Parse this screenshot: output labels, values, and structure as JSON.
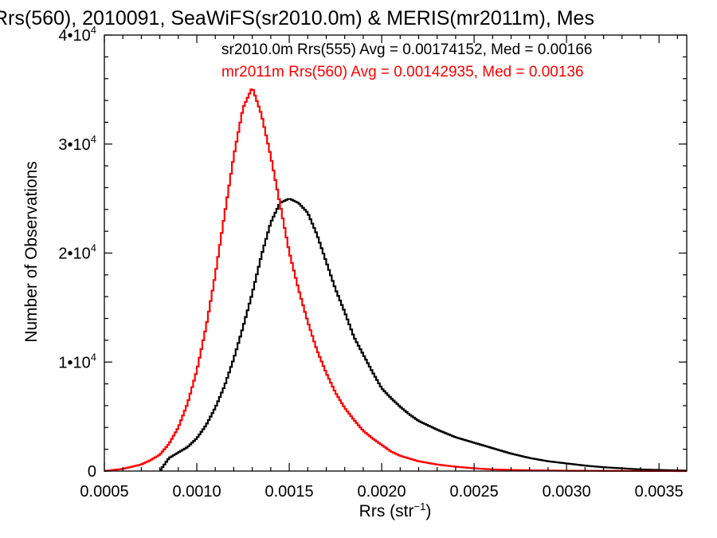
{
  "chart_data": {
    "type": "line",
    "title": "Rrs(560), 2010091, SeaWiFS(sr2010.0m) & MERIS(mr2011m), Mes",
    "xlabel": "Rrs (str",
    "xlabel_sup": "−1",
    "xlabel_close": ")",
    "ylabel": "Number of Observations",
    "xlim": [
      0.0005,
      0.00365
    ],
    "ylim": [
      0,
      40000
    ],
    "grid": false,
    "legend_position": "top-right",
    "x_ticks": [
      {
        "value": 0.0005,
        "label": "0.0005"
      },
      {
        "value": 0.001,
        "label": "0.0010"
      },
      {
        "value": 0.0015,
        "label": "0.0015"
      },
      {
        "value": 0.002,
        "label": "0.0020"
      },
      {
        "value": 0.0025,
        "label": "0.0025"
      },
      {
        "value": 0.003,
        "label": "0.0030"
      },
      {
        "value": 0.0035,
        "label": "0.0035"
      }
    ],
    "y_ticks": [
      {
        "value": 0,
        "label": "0",
        "sup": ""
      },
      {
        "value": 10000,
        "label": "1•10",
        "sup": "4"
      },
      {
        "value": 20000,
        "label": "2•10",
        "sup": "4"
      },
      {
        "value": 30000,
        "label": "3•10",
        "sup": "4"
      },
      {
        "value": 40000,
        "label": "4•10",
        "sup": "4"
      }
    ],
    "series": [
      {
        "name": "sr2010.0m Rrs(555) Avg = 0.00174152, Med = 0.00166",
        "color": "#000000",
        "x": [
          0.0008,
          0.00085,
          0.0009,
          0.00095,
          0.001,
          0.00105,
          0.0011,
          0.00115,
          0.0012,
          0.00125,
          0.0013,
          0.00135,
          0.0014,
          0.00145,
          0.0015,
          0.00155,
          0.0016,
          0.00165,
          0.0017,
          0.00175,
          0.0018,
          0.00185,
          0.0019,
          0.00195,
          0.002,
          0.00205,
          0.0021,
          0.00215,
          0.0022,
          0.0023,
          0.0024,
          0.0025,
          0.0026,
          0.0027,
          0.0028,
          0.0029,
          0.003,
          0.0031,
          0.0032,
          0.0033,
          0.0034,
          0.0035,
          0.0036,
          0.00365
        ],
        "y": [
          0,
          1200,
          1700,
          2200,
          3000,
          4200,
          5800,
          7800,
          10300,
          13200,
          16300,
          19800,
          22800,
          24600,
          25000,
          24600,
          23700,
          21700,
          19200,
          16700,
          14600,
          12300,
          10700,
          9100,
          7600,
          6700,
          5900,
          5200,
          4600,
          3800,
          3100,
          2600,
          2100,
          1600,
          1200,
          900,
          700,
          500,
          350,
          250,
          150,
          100,
          60,
          40
        ]
      },
      {
        "name": "mr2011m Rrs(560) Avg = 0.00142935, Med = 0.00136",
        "color": "#ff0000",
        "x": [
          0.0005,
          0.0006,
          0.0007,
          0.00075,
          0.0008,
          0.00085,
          0.0009,
          0.00095,
          0.001,
          0.00105,
          0.0011,
          0.00115,
          0.0012,
          0.00125,
          0.0013,
          0.00135,
          0.0014,
          0.00145,
          0.0015,
          0.00155,
          0.0016,
          0.00165,
          0.0017,
          0.00175,
          0.0018,
          0.00185,
          0.0019,
          0.00195,
          0.002,
          0.00205,
          0.0021,
          0.0022,
          0.0023,
          0.0024,
          0.0025,
          0.0026,
          0.0027,
          0.0028,
          0.0029,
          0.003,
          0.0032,
          0.0034,
          0.00365
        ],
        "y": [
          0,
          200,
          600,
          1000,
          1500,
          2500,
          4000,
          6200,
          9200,
          13200,
          18000,
          23500,
          28900,
          33300,
          35200,
          32700,
          28900,
          24500,
          20100,
          16700,
          13700,
          11100,
          9000,
          7200,
          5800,
          4700,
          3700,
          3000,
          2400,
          1800,
          1400,
          900,
          600,
          400,
          250,
          150,
          100,
          70,
          50,
          30,
          20,
          10,
          0
        ]
      }
    ]
  }
}
